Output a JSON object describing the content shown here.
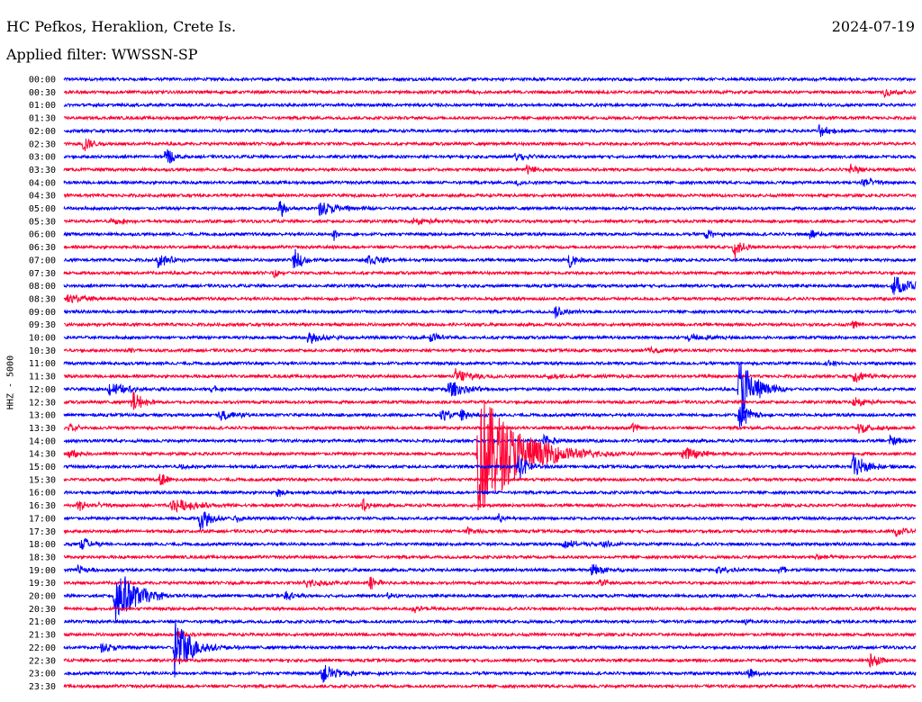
{
  "header": {
    "station": "HC Pefkos, Heraklion, Crete Is.",
    "date": "2024-07-19",
    "filter": "Applied filter: WWSSN-SP"
  },
  "channel_label": "HHZ - 5000",
  "colors": {
    "trace_a": "#0000ff",
    "trace_b": "#ff0033",
    "background": "#ffffff",
    "text": "#000000"
  },
  "chart_data": {
    "type": "helicorder",
    "trace_minutes": 30,
    "row_labels": [
      "00:00",
      "00:30",
      "01:00",
      "01:30",
      "02:00",
      "02:30",
      "03:00",
      "03:30",
      "04:00",
      "04:30",
      "05:00",
      "05:30",
      "06:00",
      "06:30",
      "07:00",
      "07:30",
      "08:00",
      "08:30",
      "09:00",
      "09:30",
      "10:00",
      "10:30",
      "11:00",
      "11:30",
      "12:00",
      "12:30",
      "13:00",
      "13:30",
      "14:00",
      "14:30",
      "15:00",
      "15:30",
      "16:00",
      "16:30",
      "17:00",
      "17:30",
      "18:00",
      "18:30",
      "19:00",
      "19:30",
      "20:00",
      "20:30",
      "21:00",
      "21:30",
      "22:00",
      "22:30",
      "23:00",
      "23:30"
    ],
    "row_colors": [
      "blue",
      "red"
    ],
    "events": [
      {
        "row": 1,
        "minute": 28.9,
        "amp": 0.5,
        "dur": 0.6
      },
      {
        "row": 1,
        "minute": 14.2,
        "amp": 0.2,
        "dur": 0.5
      },
      {
        "row": 3,
        "minute": 5.5,
        "amp": 0.2,
        "dur": 0.6
      },
      {
        "row": 4,
        "minute": 26.6,
        "amp": 0.6,
        "dur": 0.8
      },
      {
        "row": 5,
        "minute": 0.7,
        "amp": 0.9,
        "dur": 0.5
      },
      {
        "row": 6,
        "minute": 3.6,
        "amp": 1.1,
        "dur": 0.4
      },
      {
        "row": 6,
        "minute": 15.9,
        "amp": 0.6,
        "dur": 0.6
      },
      {
        "row": 7,
        "minute": 16.3,
        "amp": 0.5,
        "dur": 0.6
      },
      {
        "row": 7,
        "minute": 27.7,
        "amp": 0.5,
        "dur": 0.7
      },
      {
        "row": 8,
        "minute": 28.1,
        "amp": 0.6,
        "dur": 0.8
      },
      {
        "row": 8,
        "minute": 15.9,
        "amp": 0.3,
        "dur": 0.5
      },
      {
        "row": 10,
        "minute": 7.6,
        "amp": 1.0,
        "dur": 0.4
      },
      {
        "row": 10,
        "minute": 9.0,
        "amp": 0.6,
        "dur": 1.5
      },
      {
        "row": 11,
        "minute": 1.7,
        "amp": 0.5,
        "dur": 0.6
      },
      {
        "row": 11,
        "minute": 12.3,
        "amp": 0.3,
        "dur": 1.5
      },
      {
        "row": 12,
        "minute": 9.5,
        "amp": 0.6,
        "dur": 0.3
      },
      {
        "row": 12,
        "minute": 22.6,
        "amp": 0.5,
        "dur": 0.6
      },
      {
        "row": 12,
        "minute": 26.3,
        "amp": 0.5,
        "dur": 0.6
      },
      {
        "row": 13,
        "minute": 23.6,
        "amp": 1.1,
        "dur": 0.5
      },
      {
        "row": 14,
        "minute": 3.3,
        "amp": 0.8,
        "dur": 0.7
      },
      {
        "row": 14,
        "minute": 8.1,
        "amp": 1.0,
        "dur": 0.6
      },
      {
        "row": 14,
        "minute": 10.7,
        "amp": 0.6,
        "dur": 0.8
      },
      {
        "row": 14,
        "minute": 17.8,
        "amp": 0.8,
        "dur": 0.4
      },
      {
        "row": 15,
        "minute": 7.4,
        "amp": 0.4,
        "dur": 0.5
      },
      {
        "row": 16,
        "minute": 29.2,
        "amp": 0.9,
        "dur": 1.4
      },
      {
        "row": 17,
        "minute": 0.1,
        "amp": 0.4,
        "dur": 1.3
      },
      {
        "row": 18,
        "minute": 17.3,
        "amp": 0.6,
        "dur": 0.6
      },
      {
        "row": 19,
        "minute": 27.8,
        "amp": 0.4,
        "dur": 0.5
      },
      {
        "row": 20,
        "minute": 8.6,
        "amp": 0.6,
        "dur": 1.0
      },
      {
        "row": 20,
        "minute": 12.9,
        "amp": 0.6,
        "dur": 0.6
      },
      {
        "row": 20,
        "minute": 22.0,
        "amp": 0.4,
        "dur": 1.2
      },
      {
        "row": 21,
        "minute": 2.3,
        "amp": 0.3,
        "dur": 0.5
      },
      {
        "row": 21,
        "minute": 20.5,
        "amp": 0.3,
        "dur": 1.2
      },
      {
        "row": 22,
        "minute": 26.9,
        "amp": 0.3,
        "dur": 0.6
      },
      {
        "row": 23,
        "minute": 13.8,
        "amp": 0.7,
        "dur": 1.2
      },
      {
        "row": 23,
        "minute": 27.8,
        "amp": 0.6,
        "dur": 1.0
      },
      {
        "row": 23,
        "minute": 17.0,
        "amp": 0.2,
        "dur": 3.0
      },
      {
        "row": 24,
        "minute": 1.6,
        "amp": 0.6,
        "dur": 1.2
      },
      {
        "row": 24,
        "minute": 13.5,
        "amp": 0.8,
        "dur": 1.2
      },
      {
        "row": 24,
        "minute": 23.8,
        "amp": 3.3,
        "dur": 0.9
      },
      {
        "row": 24,
        "minute": 5.2,
        "amp": 0.4,
        "dur": 0.6
      },
      {
        "row": 25,
        "minute": 2.4,
        "amp": 1.1,
        "dur": 0.6
      },
      {
        "row": 25,
        "minute": 27.8,
        "amp": 0.5,
        "dur": 0.8
      },
      {
        "row": 26,
        "minute": 5.5,
        "amp": 0.5,
        "dur": 1.0
      },
      {
        "row": 26,
        "minute": 13.3,
        "amp": 0.6,
        "dur": 0.6
      },
      {
        "row": 26,
        "minute": 14.0,
        "amp": 0.6,
        "dur": 0.6
      },
      {
        "row": 26,
        "minute": 23.8,
        "amp": 1.4,
        "dur": 0.6
      },
      {
        "row": 27,
        "minute": 0.2,
        "amp": 0.5,
        "dur": 0.6
      },
      {
        "row": 27,
        "minute": 20.0,
        "amp": 0.4,
        "dur": 0.6
      },
      {
        "row": 27,
        "minute": 28.0,
        "amp": 0.5,
        "dur": 0.9
      },
      {
        "row": 28,
        "minute": 16.9,
        "amp": 0.6,
        "dur": 0.7
      },
      {
        "row": 28,
        "minute": 29.1,
        "amp": 0.5,
        "dur": 0.6
      },
      {
        "row": 29,
        "minute": 0.2,
        "amp": 0.5,
        "dur": 0.5
      },
      {
        "row": 29,
        "minute": 14.6,
        "amp": 6.0,
        "dur": 2.4
      },
      {
        "row": 29,
        "minute": 21.8,
        "amp": 0.8,
        "dur": 1.0
      },
      {
        "row": 30,
        "minute": 16.0,
        "amp": 1.3,
        "dur": 0.7
      },
      {
        "row": 30,
        "minute": 27.8,
        "amp": 1.3,
        "dur": 0.8
      },
      {
        "row": 30,
        "minute": 4.1,
        "amp": 0.3,
        "dur": 0.5
      },
      {
        "row": 31,
        "minute": 3.4,
        "amp": 0.8,
        "dur": 0.5
      },
      {
        "row": 32,
        "minute": 7.5,
        "amp": 0.4,
        "dur": 0.6
      },
      {
        "row": 33,
        "minute": 0.5,
        "amp": 0.5,
        "dur": 1.2
      },
      {
        "row": 33,
        "minute": 3.8,
        "amp": 0.7,
        "dur": 1.5
      },
      {
        "row": 33,
        "minute": 10.5,
        "amp": 0.8,
        "dur": 0.3
      },
      {
        "row": 34,
        "minute": 4.8,
        "amp": 1.2,
        "dur": 0.7
      },
      {
        "row": 34,
        "minute": 6.0,
        "amp": 0.4,
        "dur": 0.4
      },
      {
        "row": 34,
        "minute": 15.3,
        "amp": 0.4,
        "dur": 0.5
      },
      {
        "row": 35,
        "minute": 14.2,
        "amp": 0.4,
        "dur": 0.5
      },
      {
        "row": 35,
        "minute": 29.3,
        "amp": 0.5,
        "dur": 0.7
      },
      {
        "row": 36,
        "minute": 0.6,
        "amp": 0.6,
        "dur": 0.8
      },
      {
        "row": 36,
        "minute": 17.6,
        "amp": 0.4,
        "dur": 1.0
      },
      {
        "row": 36,
        "minute": 19.0,
        "amp": 0.4,
        "dur": 0.6
      },
      {
        "row": 37,
        "minute": 26.5,
        "amp": 0.3,
        "dur": 0.6
      },
      {
        "row": 38,
        "minute": 0.5,
        "amp": 0.4,
        "dur": 0.6
      },
      {
        "row": 38,
        "minute": 18.6,
        "amp": 0.6,
        "dur": 0.8
      },
      {
        "row": 38,
        "minute": 23.0,
        "amp": 0.4,
        "dur": 0.8
      },
      {
        "row": 38,
        "minute": 25.2,
        "amp": 0.5,
        "dur": 0.5
      },
      {
        "row": 39,
        "minute": 8.5,
        "amp": 0.4,
        "dur": 1.5
      },
      {
        "row": 39,
        "minute": 10.8,
        "amp": 0.6,
        "dur": 0.6
      },
      {
        "row": 39,
        "minute": 18.9,
        "amp": 0.5,
        "dur": 0.4
      },
      {
        "row": 40,
        "minute": 1.8,
        "amp": 3.0,
        "dur": 1.2
      },
      {
        "row": 40,
        "minute": 7.8,
        "amp": 0.5,
        "dur": 0.6
      },
      {
        "row": 40,
        "minute": 11.4,
        "amp": 0.3,
        "dur": 0.5
      },
      {
        "row": 41,
        "minute": 12.3,
        "amp": 0.4,
        "dur": 0.5
      },
      {
        "row": 42,
        "minute": 24.0,
        "amp": 0.3,
        "dur": 0.5
      },
      {
        "row": 43,
        "minute": 4.0,
        "amp": 0.3,
        "dur": 0.6
      },
      {
        "row": 44,
        "minute": 1.3,
        "amp": 0.4,
        "dur": 1.0
      },
      {
        "row": 44,
        "minute": 3.9,
        "amp": 3.0,
        "dur": 1.0
      },
      {
        "row": 45,
        "minute": 28.4,
        "amp": 0.8,
        "dur": 0.6
      },
      {
        "row": 46,
        "minute": 9.1,
        "amp": 0.8,
        "dur": 1.2
      },
      {
        "row": 46,
        "minute": 24.1,
        "amp": 0.5,
        "dur": 0.6
      }
    ]
  }
}
